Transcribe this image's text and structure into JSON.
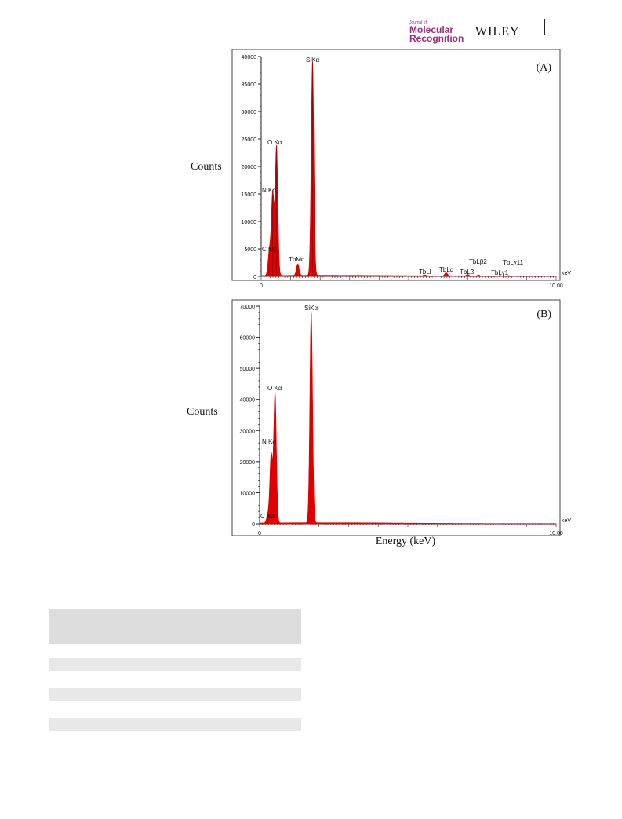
{
  "header": {
    "journal_small": "Journal of",
    "journal_line1": "Molecular",
    "journal_line2": "Recognition",
    "publisher": "WILEY",
    "brand_color": "#9b2d7f"
  },
  "chart_data": [
    {
      "type": "line",
      "panel_label": "(A)",
      "ylabel": "Counts",
      "xlabel": "",
      "x_unit_label": "keV",
      "xlim": [
        0,
        10
      ],
      "ylim": [
        0,
        40000
      ],
      "xticks": [
        "0",
        "10.00"
      ],
      "yticks": [
        "0",
        "5000",
        "10000",
        "15000",
        "20000",
        "25000",
        "30000",
        "35000",
        "40000"
      ],
      "series_color": "#e00000",
      "peaks": [
        {
          "label": "C Kα",
          "x": 0.28,
          "y": 4500
        },
        {
          "label": "N Kα",
          "x": 0.39,
          "y": 15000
        },
        {
          "label": "O Kα",
          "x": 0.52,
          "y": 23500
        },
        {
          "label": "TbMα",
          "x": 1.24,
          "y": 2100
        },
        {
          "label": "SiKα",
          "x": 1.74,
          "y": 39000
        },
        {
          "label": "TbLl",
          "x": 5.55,
          "y": 150
        },
        {
          "label": "TbLα",
          "x": 6.27,
          "y": 600
        },
        {
          "label": "TbLβ",
          "x": 7.0,
          "y": 300
        },
        {
          "label": "TbLβ2",
          "x": 7.37,
          "y": 200
        },
        {
          "label": "TbLγ1",
          "x": 8.1,
          "y": 120
        },
        {
          "label": "TbLγ11",
          "x": 8.4,
          "y": 100
        }
      ],
      "peak_labels": [
        {
          "text": "SiKα"
        },
        {
          "text": "O Kα"
        },
        {
          "text": "N Kα"
        },
        {
          "text": "C Kα"
        },
        {
          "text": "TbMα"
        },
        {
          "text": "TbLl"
        },
        {
          "text": "TbLα"
        },
        {
          "text": "TbLβ"
        },
        {
          "text": "TbLβ2"
        },
        {
          "text": "TbLγ11"
        },
        {
          "text": "TbLγ1"
        }
      ]
    },
    {
      "type": "line",
      "panel_label": "(B)",
      "ylabel": "Counts",
      "xlabel": "Energy (keV)",
      "x_unit_label": "keV",
      "xlim": [
        0,
        10
      ],
      "ylim": [
        0,
        70000
      ],
      "xticks": [
        "0",
        "10.00"
      ],
      "yticks": [
        "0",
        "10000",
        "20000",
        "30000",
        "40000",
        "50000",
        "60000",
        "70000"
      ],
      "series_color": "#e00000",
      "peaks": [
        {
          "label": "C Kα",
          "x": 0.28,
          "y": 2500
        },
        {
          "label": "N Kα",
          "x": 0.39,
          "y": 22000
        },
        {
          "label": "O Kα",
          "x": 0.52,
          "y": 42000
        },
        {
          "label": "SiKα",
          "x": 1.74,
          "y": 68000
        }
      ],
      "peak_labels": [
        {
          "text": "SiKα"
        },
        {
          "text": "O Kα"
        },
        {
          "text": "N Kα"
        },
        {
          "text": "C Kα"
        }
      ]
    }
  ],
  "table": {
    "header_rows": 1,
    "body_rows": 6
  }
}
